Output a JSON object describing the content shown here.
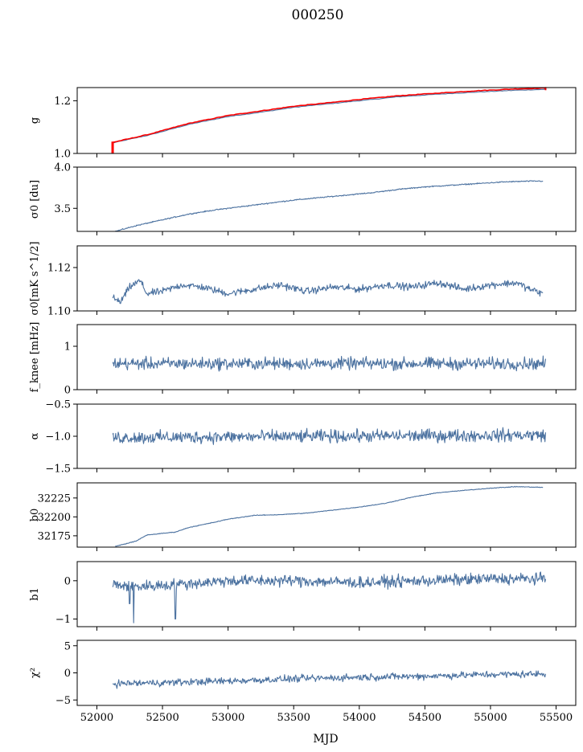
{
  "figure": {
    "title": "000250",
    "xlabel": "MJD",
    "xticks": [
      52000,
      52500,
      53000,
      53500,
      54000,
      54500,
      55000,
      55500
    ],
    "xlim": [
      51850,
      55650
    ]
  },
  "colors": {
    "line": "#4c72a0",
    "red": "#ff0000",
    "axis": "#000000"
  },
  "chart_data": [
    {
      "type": "line",
      "ylabel": "g",
      "ylim": [
        1.0,
        1.25
      ],
      "yticks": [
        1.0,
        1.2
      ],
      "ytick_labels": [
        "1.0",
        "1.2"
      ],
      "x": [
        52120,
        52400,
        52700,
        53000,
        53300,
        53500,
        53800,
        54000,
        54300,
        54600,
        54900,
        55200,
        55420
      ],
      "series": [
        {
          "values": [
            1.04,
            1.07,
            1.11,
            1.14,
            1.16,
            1.175,
            1.19,
            1.2,
            1.215,
            1.225,
            1.233,
            1.24,
            1.243
          ],
          "color": "#4c72a0"
        },
        {
          "values": [
            1.042,
            1.073,
            1.114,
            1.144,
            1.165,
            1.179,
            1.194,
            1.205,
            1.219,
            1.229,
            1.238,
            1.245,
            1.248
          ],
          "color": "#ff0000",
          "spike_at_start": [
            1.0,
            1.045
          ],
          "spike_at_end": [
            1.24,
            1.252
          ]
        }
      ]
    },
    {
      "type": "line",
      "ylabel": "σ0 [du]",
      "ylim": [
        3.22,
        4.0
      ],
      "yticks": [
        3.5,
        4.0
      ],
      "ytick_labels": [
        "3.5",
        "4.0"
      ],
      "x": [
        52140,
        52300,
        52500,
        52700,
        52900,
        53100,
        53300,
        53500,
        53700,
        53900,
        54100,
        54300,
        54500,
        54700,
        54900,
        55100,
        55300,
        55400
      ],
      "values": [
        3.22,
        3.29,
        3.36,
        3.43,
        3.48,
        3.52,
        3.56,
        3.6,
        3.63,
        3.66,
        3.69,
        3.73,
        3.76,
        3.78,
        3.8,
        3.82,
        3.83,
        3.83
      ],
      "noise": 0.006
    },
    {
      "type": "line",
      "ylabel": "σ0[mK s^1/2]",
      "ylim": [
        1.1,
        1.13
      ],
      "yticks": [
        1.1,
        1.12
      ],
      "ytick_labels": [
        "1.10",
        "1.12"
      ],
      "x": [
        52120,
        52180,
        52250,
        52330,
        52380,
        52500,
        52650,
        52800,
        53000,
        53200,
        53400,
        53600,
        53800,
        54000,
        54200,
        54400,
        54600,
        54800,
        55000,
        55200,
        55300,
        55400
      ],
      "values": [
        1.106,
        1.104,
        1.111,
        1.114,
        1.108,
        1.109,
        1.112,
        1.111,
        1.108,
        1.11,
        1.112,
        1.109,
        1.111,
        1.11,
        1.112,
        1.111,
        1.113,
        1.11,
        1.112,
        1.113,
        1.11,
        1.108
      ],
      "noise": 0.0015
    },
    {
      "type": "line",
      "ylabel": "f_knee [mHz]",
      "ylim": [
        0,
        1.5
      ],
      "yticks": [
        0,
        1
      ],
      "ytick_labels": [
        "0",
        "1"
      ],
      "x": [
        52120,
        55420
      ],
      "values": [
        0.6,
        0.6
      ],
      "noise": 0.13
    },
    {
      "type": "line",
      "ylabel": "α",
      "ylim": [
        -1.5,
        -0.5
      ],
      "yticks": [
        -1.5,
        -1.0,
        -0.5
      ],
      "ytick_labels": [
        "−1.5",
        "−1.0",
        "−0.5"
      ],
      "x": [
        52120,
        55420
      ],
      "values": [
        -1.02,
        -0.98
      ],
      "noise": 0.09
    },
    {
      "type": "line",
      "ylabel": "b0",
      "ylim": [
        32160,
        32245
      ],
      "yticks": [
        32175,
        32200,
        32225
      ],
      "ytick_labels": [
        "32175",
        "32200",
        "32225"
      ],
      "x": [
        52140,
        52300,
        52380,
        52600,
        52700,
        52900,
        53000,
        53200,
        53400,
        53600,
        53800,
        54000,
        54200,
        54400,
        54600,
        54800,
        55000,
        55200,
        55400
      ],
      "values": [
        32161,
        32168,
        32176,
        32180,
        32186,
        32193,
        32197,
        32202,
        32203,
        32205,
        32209,
        32213,
        32218,
        32226,
        32232,
        32235,
        32238,
        32240,
        32239
      ],
      "noise": 0.4
    },
    {
      "type": "line",
      "ylabel": "b1",
      "ylim": [
        -1.2,
        0.5
      ],
      "yticks": [
        -1,
        0
      ],
      "ytick_labels": [
        "−1",
        "0"
      ],
      "x": [
        52120,
        52300,
        52600,
        53000,
        53500,
        54000,
        54500,
        55000,
        55420
      ],
      "values": [
        -0.1,
        -0.15,
        -0.1,
        0.0,
        0.0,
        -0.05,
        0.0,
        0.05,
        0.05
      ],
      "noise": 0.14,
      "dips": [
        [
          52280,
          -1.1
        ],
        [
          52600,
          -1.0
        ],
        [
          52250,
          -0.6
        ]
      ]
    },
    {
      "type": "line",
      "ylabel": "χ²",
      "ylim": [
        -6,
        6
      ],
      "yticks": [
        -5,
        0,
        5
      ],
      "ytick_labels": [
        "−5",
        "0",
        "5"
      ],
      "x": [
        52120,
        52500,
        53000,
        53500,
        54000,
        54500,
        55000,
        55420
      ],
      "values": [
        -2.0,
        -1.8,
        -1.5,
        -1.1,
        -0.8,
        -0.6,
        -0.3,
        -0.2
      ],
      "noise": 0.6
    }
  ]
}
